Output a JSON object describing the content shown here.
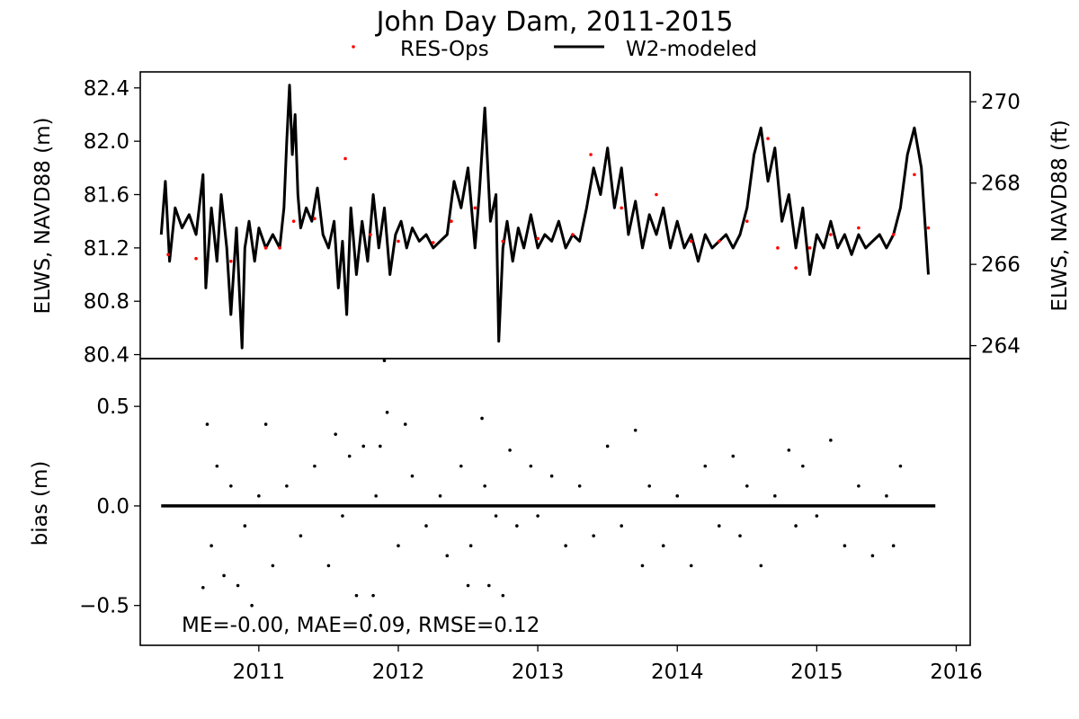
{
  "chart_data": {
    "type": "line",
    "title": "John Day Dam, 2011-2015",
    "legend": {
      "placement": "top-center",
      "entries": [
        {
          "label": "RES-Ops",
          "marker": "dot",
          "color": "#ff0000"
        },
        {
          "label": "W2-modeled",
          "marker": "line",
          "color": "#000000"
        }
      ]
    },
    "x_axis": {
      "label": "",
      "range": [
        2010.15,
        2016.1
      ],
      "ticks": [
        "2011",
        "2012",
        "2013",
        "2014",
        "2015",
        "2016"
      ]
    },
    "panels": [
      {
        "name": "elevation",
        "ylabel": "ELWS, NAVD88 (m)",
        "ylabel_right": "ELWS, NAVD88 (ft)",
        "ylim": [
          80.37,
          82.52
        ],
        "yticks": [
          "80.4",
          "80.8",
          "81.2",
          "81.6",
          "82.0",
          "82.4"
        ],
        "yticks_right": [
          "264",
          "266",
          "268",
          "270"
        ],
        "series": [
          {
            "name": "RES-Ops",
            "color": "#ff0000",
            "style": "dots",
            "x": [
              2010.35,
              2010.55,
              2010.8,
              2011.05,
              2011.15,
              2011.25,
              2011.4,
              2011.62,
              2011.8,
              2012.0,
              2012.25,
              2012.38,
              2012.55,
              2012.75,
              2013.0,
              2013.25,
              2013.38,
              2013.6,
              2013.85,
              2014.1,
              2014.3,
              2014.5,
              2014.65,
              2014.72,
              2014.85,
              2014.95,
              2015.1,
              2015.3,
              2015.55,
              2015.7,
              2015.8
            ],
            "values": [
              81.15,
              81.12,
              81.1,
              81.2,
              81.2,
              81.4,
              81.42,
              81.87,
              81.3,
              81.25,
              81.24,
              81.4,
              81.5,
              81.25,
              81.27,
              81.3,
              81.9,
              81.5,
              81.6,
              81.25,
              81.25,
              81.4,
              82.02,
              81.2,
              81.05,
              81.2,
              81.3,
              81.35,
              81.3,
              81.75,
              81.35
            ]
          },
          {
            "name": "W2-modeled",
            "color": "#000000",
            "style": "line",
            "x": [
              2010.3,
              2010.33,
              2010.36,
              2010.4,
              2010.45,
              2010.5,
              2010.55,
              2010.6,
              2010.62,
              2010.66,
              2010.7,
              2010.73,
              2010.77,
              2010.8,
              2010.84,
              2010.88,
              2010.9,
              2010.93,
              2010.97,
              2011.0,
              2011.05,
              2011.1,
              2011.15,
              2011.18,
              2011.2,
              2011.22,
              2011.24,
              2011.26,
              2011.28,
              2011.3,
              2011.34,
              2011.38,
              2011.42,
              2011.46,
              2011.5,
              2011.54,
              2011.57,
              2011.6,
              2011.63,
              2011.66,
              2011.7,
              2011.74,
              2011.78,
              2011.82,
              2011.86,
              2011.9,
              2011.94,
              2011.98,
              2012.02,
              2012.06,
              2012.1,
              2012.15,
              2012.2,
              2012.25,
              2012.3,
              2012.35,
              2012.4,
              2012.45,
              2012.5,
              2012.55,
              2012.58,
              2012.62,
              2012.66,
              2012.7,
              2012.72,
              2012.75,
              2012.78,
              2012.82,
              2012.86,
              2012.9,
              2012.95,
              2013.0,
              2013.05,
              2013.1,
              2013.15,
              2013.2,
              2013.25,
              2013.3,
              2013.35,
              2013.4,
              2013.45,
              2013.5,
              2013.55,
              2013.6,
              2013.65,
              2013.7,
              2013.75,
              2013.8,
              2013.85,
              2013.9,
              2013.95,
              2014.0,
              2014.05,
              2014.1,
              2014.15,
              2014.2,
              2014.25,
              2014.3,
              2014.35,
              2014.4,
              2014.45,
              2014.5,
              2014.55,
              2014.6,
              2014.65,
              2014.7,
              2014.75,
              2014.8,
              2014.85,
              2014.9,
              2014.95,
              2015.0,
              2015.05,
              2015.1,
              2015.15,
              2015.2,
              2015.25,
              2015.3,
              2015.35,
              2015.4,
              2015.45,
              2015.5,
              2015.55,
              2015.6,
              2015.65,
              2015.7,
              2015.75,
              2015.8
            ],
            "values": [
              81.3,
              81.7,
              81.1,
              81.5,
              81.35,
              81.45,
              81.3,
              81.75,
              80.9,
              81.5,
              81.1,
              81.6,
              81.2,
              80.7,
              81.35,
              80.45,
              81.2,
              81.4,
              81.1,
              81.35,
              81.2,
              81.3,
              81.2,
              81.5,
              82.0,
              82.42,
              81.9,
              82.2,
              81.6,
              81.35,
              81.5,
              81.4,
              81.65,
              81.3,
              81.2,
              81.4,
              80.9,
              81.25,
              80.7,
              81.5,
              81.0,
              81.4,
              81.1,
              81.6,
              81.2,
              81.5,
              81.0,
              81.3,
              81.4,
              81.2,
              81.35,
              81.25,
              81.3,
              81.2,
              81.25,
              81.3,
              81.7,
              81.5,
              81.8,
              81.2,
              81.6,
              82.25,
              81.4,
              81.6,
              80.5,
              81.2,
              81.4,
              81.1,
              81.35,
              81.2,
              81.45,
              81.2,
              81.3,
              81.25,
              81.4,
              81.2,
              81.3,
              81.25,
              81.5,
              81.8,
              81.6,
              81.95,
              81.5,
              81.8,
              81.3,
              81.55,
              81.2,
              81.45,
              81.3,
              81.5,
              81.2,
              81.4,
              81.2,
              81.3,
              81.1,
              81.3,
              81.2,
              81.25,
              81.3,
              81.2,
              81.3,
              81.5,
              81.9,
              82.1,
              81.7,
              81.95,
              81.4,
              81.6,
              81.2,
              81.5,
              81.0,
              81.3,
              81.2,
              81.4,
              81.2,
              81.3,
              81.15,
              81.3,
              81.2,
              81.25,
              81.3,
              81.2,
              81.3,
              81.5,
              81.9,
              82.1,
              81.8,
              81.0
            ]
          }
        ]
      },
      {
        "name": "bias",
        "ylabel": "bias (m)",
        "ylim": [
          -0.7,
          0.74
        ],
        "yticks": [
          "−0.5",
          "0.0",
          "0.5"
        ],
        "zero_line": {
          "from": 2010.3,
          "to": 2015.85,
          "value": 0.0
        },
        "series": [
          {
            "name": "bias",
            "color": "#000000",
            "style": "dots",
            "x": [
              2010.6,
              2010.63,
              2010.66,
              2010.7,
              2010.75,
              2010.8,
              2010.85,
              2010.9,
              2010.95,
              2011.0,
              2011.05,
              2011.1,
              2011.2,
              2011.3,
              2011.4,
              2011.5,
              2011.55,
              2011.6,
              2011.65,
              2011.7,
              2011.75,
              2011.8,
              2011.82,
              2011.84,
              2011.87,
              2011.9,
              2011.92,
              2012.0,
              2012.05,
              2012.1,
              2012.2,
              2012.3,
              2012.35,
              2012.45,
              2012.5,
              2012.52,
              2012.6,
              2012.62,
              2012.65,
              2012.7,
              2012.75,
              2012.8,
              2012.85,
              2012.95,
              2013.0,
              2013.1,
              2013.2,
              2013.3,
              2013.4,
              2013.5,
              2013.6,
              2013.7,
              2013.75,
              2013.8,
              2013.9,
              2014.0,
              2014.1,
              2014.2,
              2014.3,
              2014.4,
              2014.45,
              2014.5,
              2014.6,
              2014.7,
              2014.8,
              2014.85,
              2014.9,
              2015.0,
              2015.1,
              2015.2,
              2015.3,
              2015.4,
              2015.5,
              2015.55,
              2015.6
            ],
            "values": [
              -0.41,
              0.41,
              -0.2,
              0.2,
              -0.35,
              0.1,
              -0.4,
              -0.1,
              -0.5,
              0.05,
              0.41,
              -0.3,
              0.1,
              -0.15,
              0.2,
              -0.3,
              0.36,
              -0.05,
              0.25,
              -0.45,
              0.3,
              -0.55,
              -0.45,
              0.05,
              0.3,
              0.73,
              0.47,
              -0.2,
              0.41,
              0.15,
              -0.1,
              0.05,
              -0.25,
              0.2,
              -0.4,
              -0.2,
              0.44,
              0.1,
              -0.4,
              -0.05,
              -0.45,
              0.28,
              -0.1,
              0.2,
              -0.05,
              0.15,
              -0.2,
              0.1,
              -0.15,
              0.3,
              -0.1,
              0.38,
              -0.3,
              0.1,
              -0.2,
              0.05,
              -0.3,
              0.2,
              -0.1,
              0.25,
              -0.15,
              0.1,
              -0.3,
              0.05,
              0.28,
              -0.1,
              0.2,
              -0.05,
              0.33,
              -0.2,
              0.1,
              -0.25,
              0.05,
              -0.2,
              0.2
            ]
          }
        ],
        "annotation": "ME=-0.00, MAE=0.09, RMSE=0.12"
      }
    ],
    "grid": false
  }
}
